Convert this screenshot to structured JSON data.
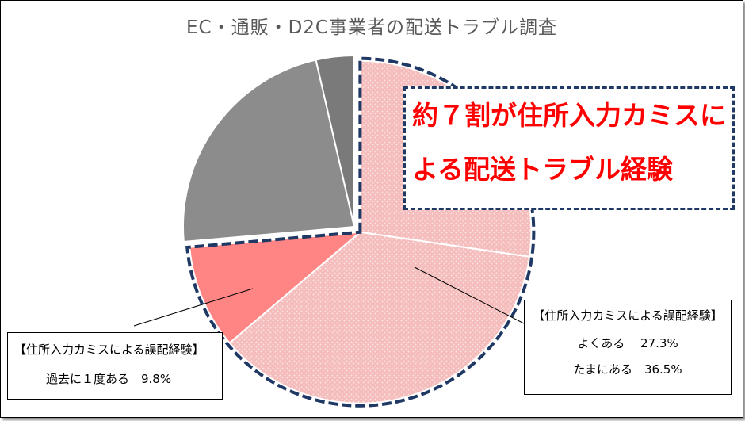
{
  "chart_data": {
    "type": "pie",
    "title": "EC・通販・D2C事業者の配送トラブル調査",
    "slices": [
      {
        "label": "よくある",
        "value": 27.3,
        "color": "#f5b8b8",
        "group": "住所入力カミスによる誤配経験",
        "exploded": true,
        "pattern": true
      },
      {
        "label": "たまにある",
        "value": 36.5,
        "color": "#f5b8b8",
        "group": "住所入力カミスによる誤配経験",
        "exploded": true,
        "pattern": true
      },
      {
        "label": "過去に１度ある",
        "value": 9.8,
        "color": "#ff8585",
        "group": "住所入力カミスによる誤配経験",
        "exploded": true,
        "pattern": false
      },
      {
        "label": "",
        "value": 22.8,
        "color": "#8c8c8c",
        "group": "",
        "exploded": false,
        "pattern": false
      },
      {
        "label": "",
        "value": 3.6,
        "color": "#7a7a7a",
        "group": "",
        "exploded": false,
        "pattern": false
      }
    ],
    "start_angle_deg": 0,
    "direction": "clockwise"
  },
  "callout": {
    "line1": "約７割が住所入力カミスに",
    "line2": "よる配送トラブル経験"
  },
  "right_note": {
    "heading": "【住所入力カミスによる誤配経験】",
    "row1": "よくある　 27.3%",
    "row2": "たまにある　36.5%"
  },
  "left_note": {
    "heading": "【住所入力カミスによる誤配経験】",
    "row1": "過去に１度ある　9.8%"
  },
  "colors": {
    "callout_text": "#ff0000",
    "dash_border": "#1f3864",
    "title_text": "#595959"
  }
}
